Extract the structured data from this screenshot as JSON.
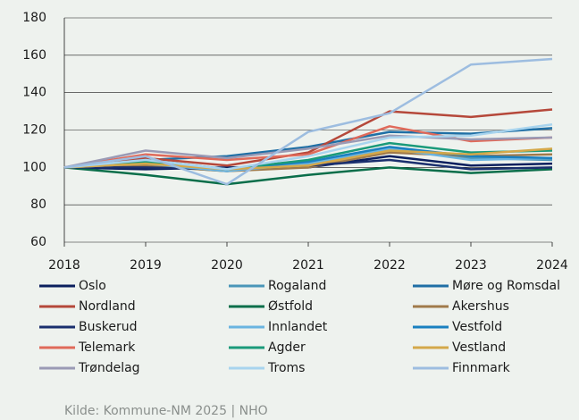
{
  "chart_data": {
    "type": "line",
    "x": [
      2018,
      2019,
      2020,
      2021,
      2022,
      2023,
      2024
    ],
    "xlim": [
      2018,
      2024
    ],
    "xticks": [
      2018,
      2019,
      2020,
      2021,
      2022,
      2023,
      2024
    ],
    "ylim": [
      60,
      180
    ],
    "yticks": [
      60,
      80,
      100,
      120,
      140,
      160,
      180
    ],
    "grid": true,
    "legend": "bottom",
    "series": [
      {
        "name": "Oslo",
        "color": "#0b1f5e",
        "values": [
          100,
          99,
          100,
          100,
          106,
          101,
          102
        ]
      },
      {
        "name": "Rogaland",
        "color": "#4a96b8",
        "values": [
          100,
          101,
          98,
          103,
          110,
          105,
          104
        ]
      },
      {
        "name": "Møre og Romsdal",
        "color": "#1f6fa5",
        "values": [
          100,
          104,
          106,
          111,
          119,
          118,
          121
        ]
      },
      {
        "name": "Nordland",
        "color": "#b5483a",
        "values": [
          100,
          105,
          101,
          108,
          130,
          127,
          131
        ]
      },
      {
        "name": "Østfold",
        "color": "#0a6e4a",
        "values": [
          100,
          96,
          91,
          96,
          100,
          97,
          99
        ]
      },
      {
        "name": "Akershus",
        "color": "#a07a4a",
        "values": [
          100,
          101,
          98,
          100,
          108,
          106,
          107
        ]
      },
      {
        "name": "Buskerud",
        "color": "#1a2f6e",
        "values": [
          100,
          100,
          99,
          101,
          104,
          99,
          100
        ]
      },
      {
        "name": "Innlandet",
        "color": "#6ab4e0",
        "values": [
          100,
          102,
          98,
          102,
          110,
          104,
          105
        ]
      },
      {
        "name": "Vestfold",
        "color": "#1a80c0",
        "values": [
          100,
          104,
          99,
          103,
          111,
          106,
          105
        ]
      },
      {
        "name": "Telemark",
        "color": "#e06a5a",
        "values": [
          100,
          107,
          104,
          107,
          122,
          114,
          116
        ]
      },
      {
        "name": "Agder",
        "color": "#1a9a7a",
        "values": [
          100,
          103,
          99,
          104,
          113,
          108,
          109
        ]
      },
      {
        "name": "Vestland",
        "color": "#d4a84a",
        "values": [
          100,
          102,
          99,
          101,
          109,
          107,
          110
        ]
      },
      {
        "name": "Trøndelag",
        "color": "#9a9ab5",
        "values": [
          100,
          109,
          105,
          110,
          117,
          115,
          116
        ]
      },
      {
        "name": "Troms",
        "color": "#a8d4ee",
        "values": [
          100,
          104,
          99,
          106,
          116,
          117,
          123
        ]
      },
      {
        "name": "Finnmark",
        "color": "#9dbde0",
        "values": [
          100,
          106,
          91,
          119,
          129,
          155,
          158
        ]
      }
    ]
  },
  "source": "Kilde: Kommune-NM 2025 | NHO"
}
